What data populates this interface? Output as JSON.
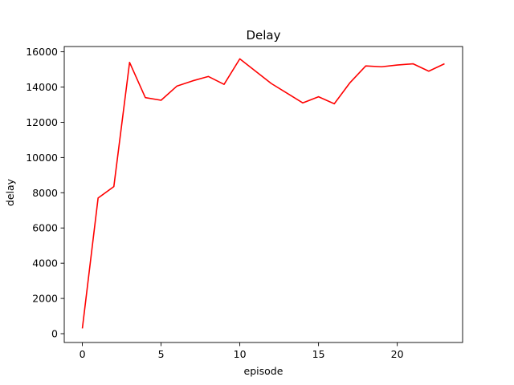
{
  "chart_data": {
    "type": "line",
    "title": "Delay",
    "xlabel": "episode",
    "ylabel": "delay",
    "xlim": [
      -1.15,
      24.15
    ],
    "ylim": [
      -500,
      16300
    ],
    "xticks": [
      0,
      5,
      10,
      15,
      20
    ],
    "yticks": [
      0,
      2000,
      4000,
      6000,
      8000,
      10000,
      12000,
      14000,
      16000
    ],
    "grid": false,
    "legend": "none",
    "series": [
      {
        "color": "#ff0000",
        "x": [
          0,
          1,
          2,
          3,
          4,
          5,
          6,
          7,
          8,
          9,
          10,
          11,
          12,
          13,
          14,
          15,
          16,
          17,
          18,
          19,
          20,
          21,
          22,
          23
        ],
        "values": [
          300,
          7700,
          8350,
          15400,
          13400,
          13250,
          14050,
          14350,
          14600,
          14150,
          15600,
          14900,
          14200,
          13650,
          13100,
          13450,
          13050,
          14250,
          15200,
          15150,
          15250,
          15320,
          14900,
          15320
        ]
      }
    ]
  }
}
